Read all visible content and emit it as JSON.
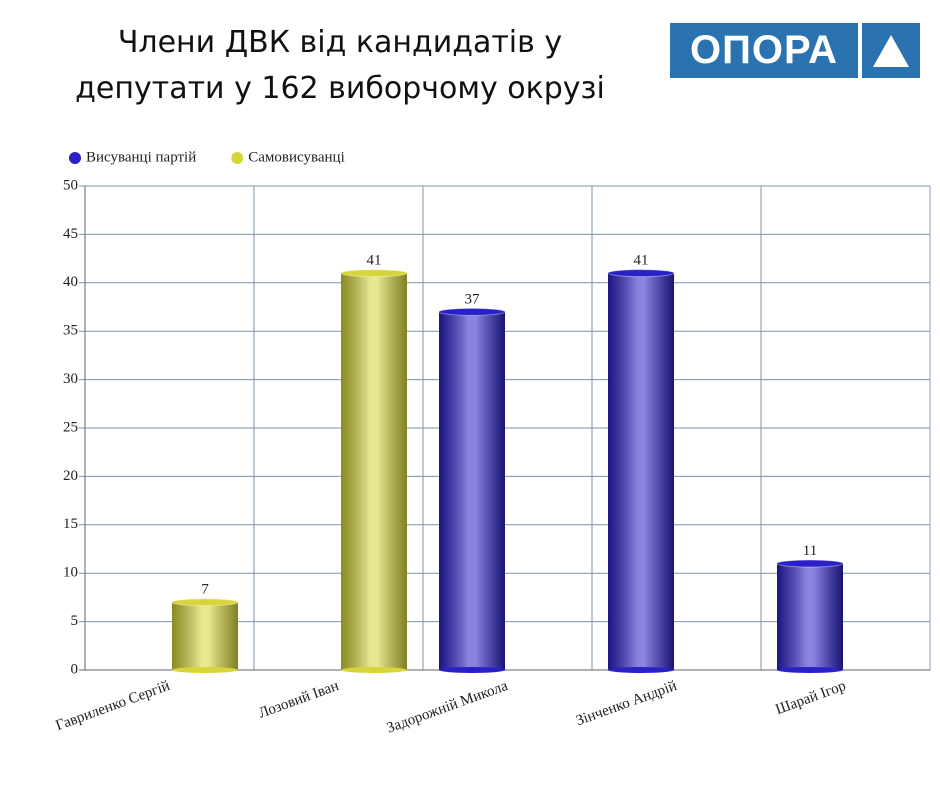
{
  "logo": "ОПОРА",
  "chart_data": {
    "type": "bar",
    "title": "Члени ДВК  від кандидатів у депутати у 162 виборчому окрузі",
    "categories": [
      "Гавриленко Сергій",
      "Лозовий Іван",
      "Задорожній Микола",
      "Зінченко Андрій",
      "Шарай Ігор"
    ],
    "series": [
      {
        "name": "Висуванці партій",
        "color": "#2a20c8",
        "values": [
          null,
          null,
          37,
          41,
          11
        ]
      },
      {
        "name": "Самовисуванці",
        "color": "#d6d63a",
        "values": [
          7,
          41,
          null,
          null,
          null
        ]
      }
    ],
    "ylim": [
      0,
      50
    ],
    "yticks": [
      0,
      5,
      10,
      15,
      20,
      25,
      30,
      35,
      40,
      45,
      50
    ],
    "grid": true,
    "legend": "top-left"
  }
}
